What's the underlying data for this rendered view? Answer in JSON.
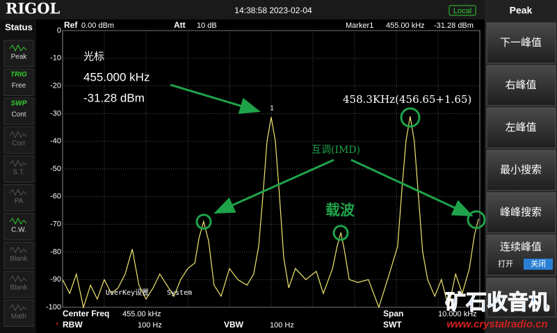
{
  "header": {
    "logo": "RIGOL",
    "datetime": "14:38:58 2023-02-04",
    "mode": "Local"
  },
  "status": {
    "title": "Status",
    "items": [
      {
        "label": "Peak"
      },
      {
        "tag": "TRIG",
        "label": "Free"
      },
      {
        "tag": "SWP",
        "label": "Cont"
      },
      {
        "label": "Corr"
      },
      {
        "label": "S.T."
      },
      {
        "label": "PA"
      },
      {
        "label": "C.W."
      },
      {
        "label": "Blank"
      },
      {
        "label": "Blank"
      },
      {
        "label": "Math"
      }
    ]
  },
  "menu": {
    "title": "Peak",
    "buttons": [
      "下一峰值",
      "右峰值",
      "左峰值",
      "最小搜索",
      "峰峰搜索",
      "连续峰值"
    ],
    "toggle": {
      "on": "打开",
      "off": "关闭"
    }
  },
  "info": {
    "ref_label": "Ref",
    "ref": "0.00 dBm",
    "att_label": "Att",
    "att": "10 dB",
    "marker_label": "Marker1",
    "marker_freq": "455.00 kHz",
    "marker_level": "-31.28 dBm"
  },
  "footer": {
    "center_label": "Center Freq",
    "center": "455.00 kHz",
    "span_label": "Span",
    "span": "10.000 kHz",
    "rbw_label": "RBW",
    "rbw": "100 Hz",
    "vbw_label": "VBW",
    "vbw": "100 Hz",
    "swt_label": "SWT"
  },
  "overlay": {
    "user_key": "UserKey设置",
    "system": "System"
  },
  "annotations": {
    "cursor": "光标",
    "cursor_freq": "455.000 kHz",
    "cursor_level": "-31.28 dBm",
    "right_peak": "458.3KHz(456.65+1.65)",
    "imd": "互调(IMD)",
    "carrier": "载波"
  },
  "watermark": {
    "name": "矿石收音机",
    "url": "www.crystalradio.cn"
  },
  "chart_data": {
    "type": "line",
    "xlim": [
      450,
      460
    ],
    "ylim": [
      -100,
      0
    ],
    "yticks": [
      0,
      -10,
      -20,
      -30,
      -40,
      -50,
      -60,
      -70,
      -80,
      -90,
      -100
    ],
    "grid": true,
    "color": "#f2e870",
    "marker": "1",
    "x": [
      450,
      450.17,
      450.33,
      450.5,
      450.67,
      450.83,
      451,
      451.17,
      451.33,
      451.5,
      451.67,
      451.83,
      452,
      452.17,
      452.33,
      452.5,
      452.67,
      452.83,
      453,
      453.17,
      453.27,
      453.38,
      453.5,
      453.63,
      453.8,
      454,
      454.2,
      454.42,
      454.58,
      454.7,
      454.8,
      454.9,
      455,
      455.1,
      455.2,
      455.3,
      455.42,
      455.58,
      455.83,
      456.08,
      456.25,
      456.47,
      456.58,
      456.67,
      456.75,
      456.87,
      457.08,
      457.33,
      457.58,
      457.83,
      458.03,
      458.13,
      458.23,
      458.33,
      458.43,
      458.53,
      458.63,
      458.75,
      458.92,
      459.08,
      459.25,
      459.42,
      459.58,
      459.75,
      459.87,
      459.97
    ],
    "values": [
      -90,
      -95,
      -88,
      -100,
      -92,
      -97,
      -90,
      -95,
      -93,
      -88,
      -79,
      -92,
      -97,
      -93,
      -88,
      -92,
      -96,
      -90,
      -86,
      -84,
      -75,
      -69,
      -76,
      -92,
      -96,
      -86,
      -90,
      -92,
      -88,
      -78,
      -60,
      -40,
      -31.28,
      -40,
      -60,
      -82,
      -93,
      -86,
      -90,
      -87,
      -95,
      -86,
      -78,
      -73,
      -79,
      -90,
      -91,
      -90,
      -100,
      -88,
      -78,
      -58,
      -40,
      -31,
      -40,
      -60,
      -80,
      -90,
      -96,
      -90,
      -100,
      -88,
      -95,
      -86,
      -74,
      -68
    ]
  }
}
